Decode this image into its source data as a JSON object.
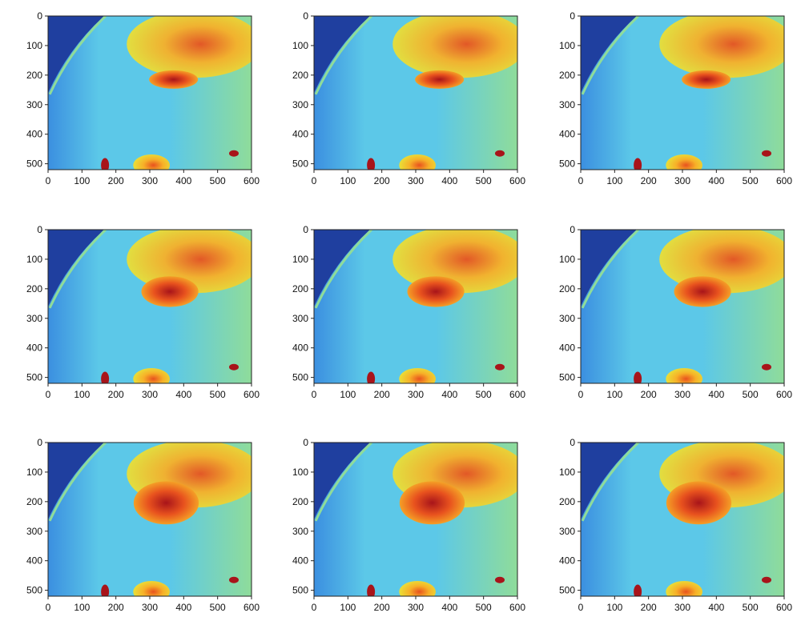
{
  "chart_data": {
    "type": "heatmap",
    "panel_count": 9,
    "grid": "3x3",
    "colormap": [
      "#1f3f9f",
      "#3b8fe0",
      "#5cc8e8",
      "#8fdc9a",
      "#e6e83a",
      "#f7b028",
      "#e8521e",
      "#a8141a"
    ],
    "xlim": [
      0,
      600
    ],
    "ylim": [
      520,
      0
    ],
    "grid_lines": false,
    "legend": "none",
    "panels": [
      {
        "panel": 1,
        "x_ticks": [
          "0",
          "100",
          "200",
          "300",
          "400",
          "500",
          "600"
        ],
        "y_ticks": [
          "0",
          "100",
          "200",
          "300",
          "400",
          "500"
        ]
      },
      {
        "panel": 2,
        "x_ticks": [
          "0",
          "100",
          "200",
          "300",
          "400",
          "500",
          "600"
        ],
        "y_ticks": [
          "0",
          "100",
          "200",
          "300",
          "400",
          "500"
        ]
      },
      {
        "panel": 3,
        "x_ticks": [
          "0",
          "100",
          "200",
          "300",
          "400",
          "500",
          "600"
        ],
        "y_ticks": [
          "0",
          "100",
          "200",
          "300",
          "400",
          "500"
        ]
      },
      {
        "panel": 4,
        "x_ticks": [
          "0",
          "100",
          "200",
          "300",
          "400",
          "500",
          "600"
        ],
        "y_ticks": [
          "0",
          "100",
          "200",
          "300",
          "400",
          "500"
        ]
      },
      {
        "panel": 5,
        "x_ticks": [
          "0",
          "100",
          "200",
          "300",
          "400",
          "500",
          "600"
        ],
        "y_ticks": [
          "0",
          "100",
          "200",
          "300",
          "400",
          "500"
        ]
      },
      {
        "panel": 6,
        "x_ticks": [
          "0",
          "100",
          "200",
          "300",
          "400",
          "500",
          "600"
        ],
        "y_ticks": [
          "0",
          "100",
          "200",
          "300",
          "400",
          "500"
        ]
      },
      {
        "panel": 7,
        "x_ticks": [
          "0",
          "100",
          "200",
          "300",
          "400",
          "500",
          "600"
        ],
        "y_ticks": [
          "0",
          "100",
          "200",
          "300",
          "400",
          "500"
        ]
      },
      {
        "panel": 8,
        "x_ticks": [
          "0",
          "100",
          "200",
          "300",
          "400",
          "500",
          "600"
        ],
        "y_ticks": [
          "0",
          "100",
          "200",
          "300",
          "400",
          "500"
        ]
      },
      {
        "panel": 9,
        "x_ticks": [
          "0",
          "100",
          "200",
          "300",
          "400",
          "500",
          "600"
        ],
        "y_ticks": [
          "0",
          "100",
          "200",
          "300",
          "400",
          "500"
        ]
      }
    ]
  }
}
